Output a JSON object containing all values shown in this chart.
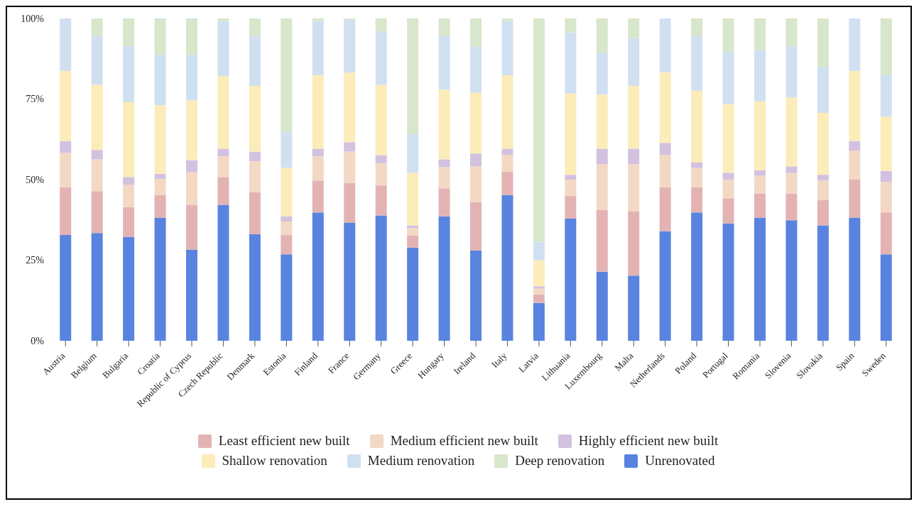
{
  "chart_data": {
    "type": "bar",
    "stacked": true,
    "categories": [
      "Austria",
      "Belgium",
      "Bulgaria",
      "Croatia",
      "Republic of Cyprus",
      "Czech Republic",
      "Denmark",
      "Estonia",
      "Finland",
      "France",
      "Germany",
      "Greece",
      "Hungary",
      "Ireland",
      "Italy",
      "Latvia",
      "Lithuania",
      "Luxembourg",
      "Malta",
      "Netherlands",
      "Poland",
      "Portugal",
      "Romania",
      "Slovenia",
      "Slovakia",
      "Spain",
      "Sweden"
    ],
    "series": [
      {
        "name": "Unrenovated",
        "color": "#5884e0",
        "values": [
          32.8,
          33.4,
          32.2,
          38.2,
          28.3,
          42.2,
          33.1,
          26.8,
          39.8,
          36.7,
          38.9,
          28.9,
          38.6,
          28.0,
          45.2,
          11.7,
          37.9,
          21.4,
          20.2,
          34.0,
          39.8,
          36.4,
          38.2,
          37.4,
          35.8,
          38.2,
          26.8
        ]
      },
      {
        "name": "Least efficient new built",
        "color": "#e3b3b3",
        "values": [
          14.8,
          13.0,
          9.3,
          7.0,
          13.9,
          8.6,
          13.0,
          6.0,
          9.9,
          12.3,
          9.3,
          3.7,
          8.7,
          15.0,
          7.2,
          2.7,
          7.0,
          19.2,
          19.9,
          13.6,
          7.8,
          7.8,
          7.5,
          8.3,
          7.9,
          11.8,
          13.0
        ]
      },
      {
        "name": "Medium efficient new built",
        "color": "#f3d8c4",
        "values": [
          10.7,
          9.9,
          6.9,
          5.0,
          10.2,
          6.4,
          9.6,
          4.2,
          7.5,
          9.7,
          6.9,
          2.4,
          6.6,
          11.1,
          5.3,
          1.9,
          5.1,
          14.2,
          14.7,
          10.1,
          6.0,
          5.8,
          5.5,
          6.4,
          6.0,
          9.0,
          9.5
        ]
      },
      {
        "name": "Highly efficient new built",
        "color": "#d2c1df",
        "values": [
          3.7,
          2.9,
          2.4,
          1.6,
          3.6,
          2.4,
          3.0,
          1.6,
          2.4,
          2.9,
          2.4,
          0.8,
          2.4,
          4.0,
          1.9,
          0.6,
          1.5,
          4.8,
          4.8,
          3.7,
          1.8,
          2.1,
          1.7,
          2.0,
          1.8,
          3.0,
          3.4
        ]
      },
      {
        "name": "Shallow renovation",
        "color": "#fcecb9",
        "values": [
          21.7,
          20.2,
          23.2,
          21.3,
          18.6,
          22.5,
          20.4,
          15.0,
          22.8,
          21.6,
          21.9,
          16.3,
          21.6,
          18.9,
          22.8,
          8.1,
          25.2,
          16.8,
          19.5,
          21.9,
          22.2,
          21.3,
          21.4,
          21.4,
          19.2,
          21.7,
          16.8
        ]
      },
      {
        "name": "Medium renovation",
        "color": "#d1e0f0",
        "values": [
          16.3,
          15.1,
          17.4,
          15.6,
          14.1,
          17.1,
          15.4,
          11.1,
          16.8,
          16.4,
          16.6,
          12.0,
          16.6,
          14.2,
          16.8,
          5.7,
          19.0,
          13.0,
          14.8,
          16.7,
          16.9,
          16.3,
          15.9,
          15.9,
          14.4,
          16.3,
          12.9
        ]
      },
      {
        "name": "Deep renovation",
        "color": "#d8e6cb",
        "values": [
          0,
          5.5,
          8.6,
          11.3,
          11.3,
          0.8,
          5.5,
          35.3,
          0.8,
          0.4,
          4.0,
          35.9,
          5.5,
          8.8,
          0.8,
          69.3,
          4.3,
          10.6,
          6.1,
          0,
          5.5,
          10.3,
          9.8,
          8.6,
          14.9,
          0,
          17.6
        ]
      }
    ],
    "ylim": [
      0,
      100
    ],
    "yticks": [
      {
        "value": 0,
        "label": "0%"
      },
      {
        "value": 25,
        "label": "25%"
      },
      {
        "value": 50,
        "label": "50%"
      },
      {
        "value": 75,
        "label": "75%"
      },
      {
        "value": 100,
        "label": "100%"
      }
    ],
    "grid": false,
    "legend": "bottom"
  }
}
